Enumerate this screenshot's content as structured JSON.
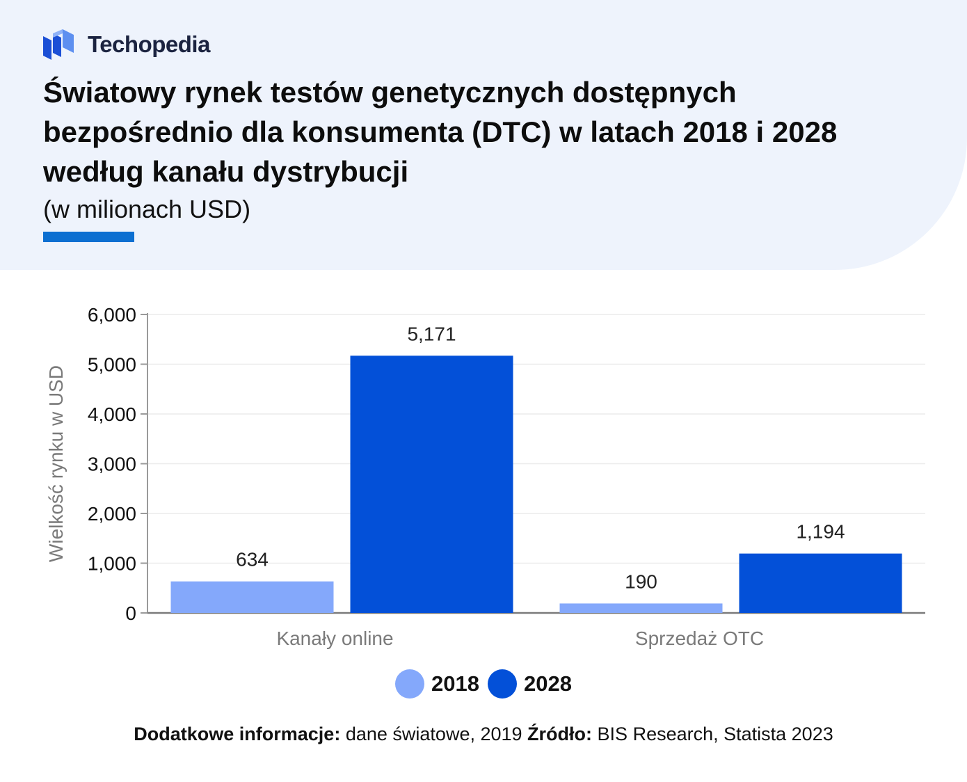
{
  "brand": {
    "name": "Techopedia",
    "icon": "techopedia-logo-icon",
    "colors": {
      "dark": "#1b4fd6",
      "light": "#5d8ff0"
    }
  },
  "header": {
    "title": "Światowy rynek testów genetycznych dostępnych bezpośrednio dla konsumenta (DTC) w latach 2018 i 2028 według kanału dystrybucji",
    "subtitle": "(w milionach USD)",
    "accent_color": "#0c6fd1"
  },
  "chart_data": {
    "type": "bar",
    "categories": [
      "Kanały online",
      "Sprzedaż OTC"
    ],
    "series": [
      {
        "name": "2018",
        "values": [
          634,
          190
        ],
        "color": "#84a8fb"
      },
      {
        "name": "2028",
        "values": [
          5171,
          1194
        ],
        "color": "#0350d8"
      }
    ],
    "data_labels": [
      [
        "634",
        "190"
      ],
      [
        "5,171",
        "1,194"
      ]
    ],
    "ylabel": "Wielkość rynku w USD",
    "xlabel": "",
    "ylim": [
      0,
      6000
    ],
    "yticks": [
      0,
      1000,
      2000,
      3000,
      4000,
      5000,
      6000
    ],
    "ytick_labels": [
      "0",
      "1,000",
      "2,000",
      "3,000",
      "4,000",
      "5,000",
      "6,000"
    ],
    "grid": true,
    "legend_position": "bottom-center"
  },
  "footer": {
    "info_label": "Dodatkowe informacje:",
    "info_value": "dane światowe, 2019",
    "source_label": "Źródło:",
    "source_value": "BIS Research, Statista 2023"
  }
}
